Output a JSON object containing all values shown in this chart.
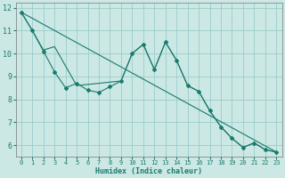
{
  "xlabel": "Humidex (Indice chaleur)",
  "background_color": "#cce8e4",
  "grid_color": "#99cccc",
  "line_color": "#1a7a6e",
  "xlim": [
    -0.5,
    23.5
  ],
  "ylim": [
    5.5,
    12.2
  ],
  "x_ticks": [
    0,
    1,
    2,
    3,
    4,
    5,
    6,
    7,
    8,
    9,
    10,
    11,
    12,
    13,
    14,
    15,
    16,
    17,
    18,
    19,
    20,
    21,
    22,
    23
  ],
  "y_ticks": [
    6,
    7,
    8,
    9,
    10,
    11,
    12
  ],
  "series1_x": [
    0,
    1,
    2,
    3,
    4,
    5,
    6,
    7,
    8,
    9,
    10,
    11,
    12,
    13,
    14,
    15,
    16,
    17,
    18,
    19,
    20,
    21,
    22,
    23
  ],
  "series1_y": [
    11.8,
    11.0,
    10.1,
    9.2,
    8.5,
    8.7,
    8.4,
    8.3,
    8.55,
    8.8,
    10.0,
    10.4,
    9.3,
    10.5,
    9.7,
    8.6,
    8.35,
    7.5,
    6.8,
    6.3,
    5.9,
    6.1,
    5.8,
    5.7
  ],
  "series2_x": [
    0,
    1,
    2,
    3,
    5,
    9,
    10,
    11,
    12,
    13,
    14,
    15,
    16,
    17,
    18,
    19,
    20,
    21,
    22,
    23
  ],
  "series2_y": [
    11.8,
    11.0,
    10.15,
    10.3,
    8.6,
    8.8,
    10.0,
    10.4,
    9.3,
    10.5,
    9.7,
    8.6,
    8.35,
    7.5,
    6.8,
    6.3,
    5.9,
    6.1,
    5.8,
    5.7
  ],
  "series3_x": [
    0,
    23
  ],
  "series3_y": [
    11.8,
    5.7
  ]
}
